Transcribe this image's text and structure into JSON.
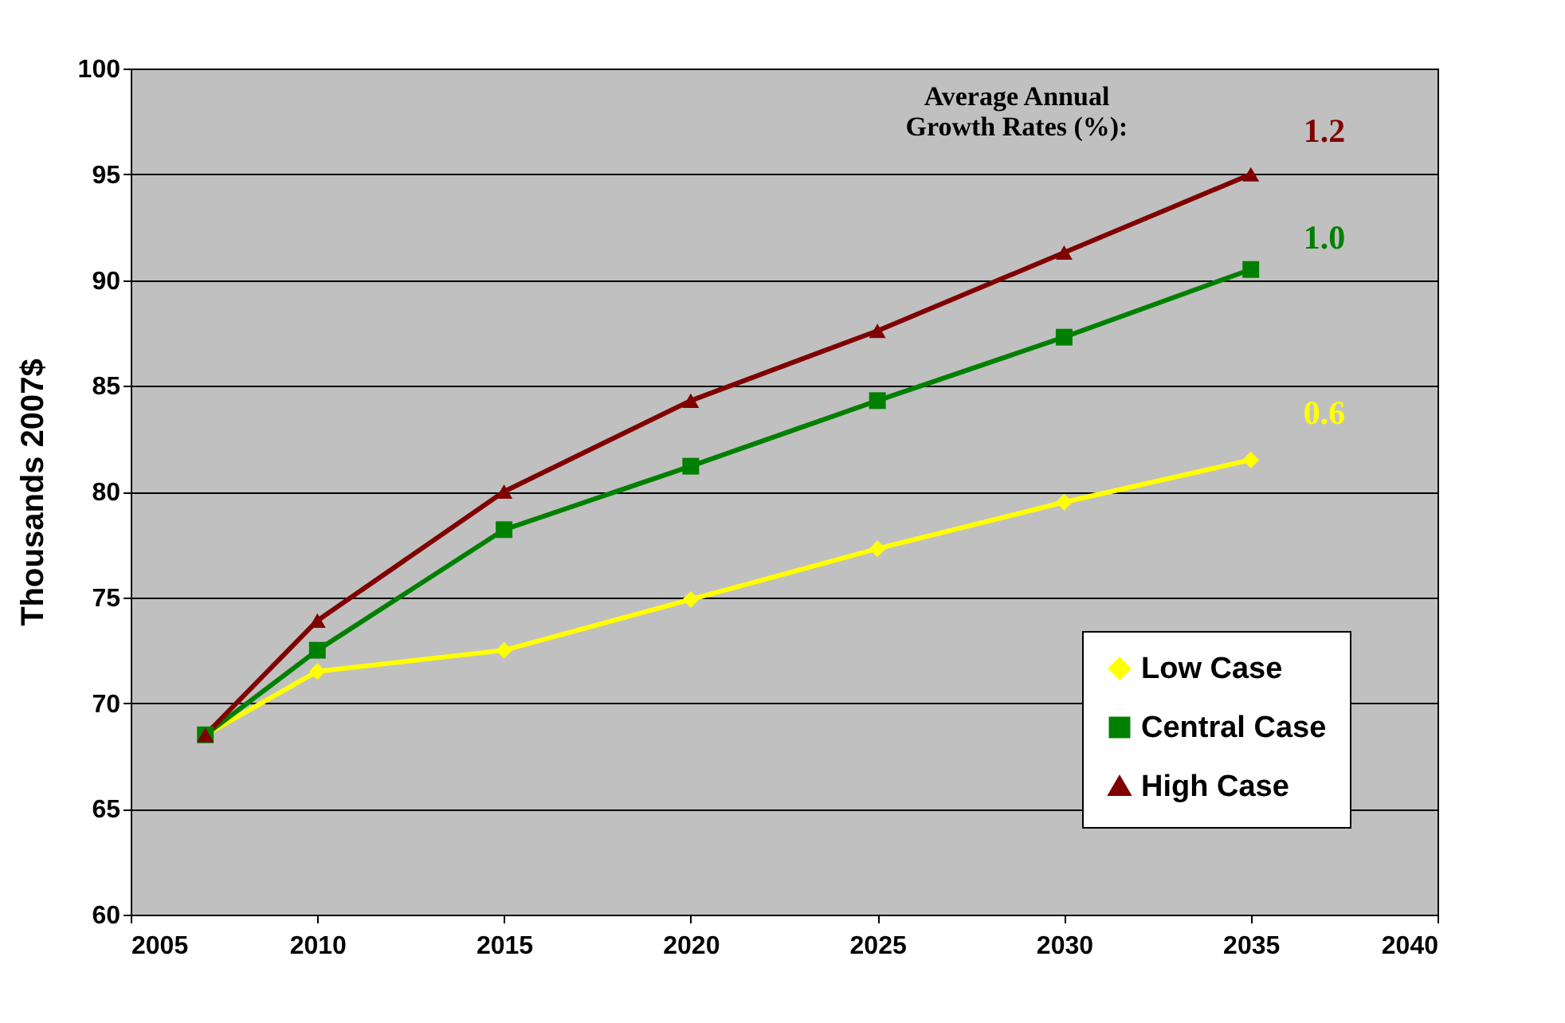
{
  "chart_data": {
    "type": "line",
    "ylabel": "Thousands 2007$",
    "x": [
      2007,
      2010,
      2015,
      2020,
      2025,
      2030,
      2035
    ],
    "series": [
      {
        "name": "Low Case",
        "color": "#ffff00",
        "marker": "diamond",
        "values": [
          68.5,
          71.5,
          72.5,
          74.9,
          77.3,
          79.5,
          81.5
        ]
      },
      {
        "name": "Central Case",
        "color": "#008000",
        "marker": "square",
        "values": [
          68.5,
          72.5,
          78.2,
          81.2,
          84.3,
          87.3,
          90.5
        ]
      },
      {
        "name": "High Case",
        "color": "#800000",
        "marker": "triangle",
        "values": [
          68.5,
          73.9,
          80.0,
          84.3,
          87.6,
          91.3,
          95.0
        ]
      }
    ],
    "xlim": [
      2005,
      2040
    ],
    "xticks": [
      2005,
      2010,
      2015,
      2020,
      2025,
      2030,
      2035,
      2040
    ],
    "ylim": [
      60,
      100
    ],
    "yticks": [
      60,
      65,
      70,
      75,
      80,
      85,
      90,
      95,
      100
    ],
    "grid": "y",
    "legend": "bottom right",
    "line_style": "solid",
    "annotations": [
      "Average Annual\nGrowth Rates (%):",
      "1.2",
      "1.0",
      "0.6"
    ]
  }
}
